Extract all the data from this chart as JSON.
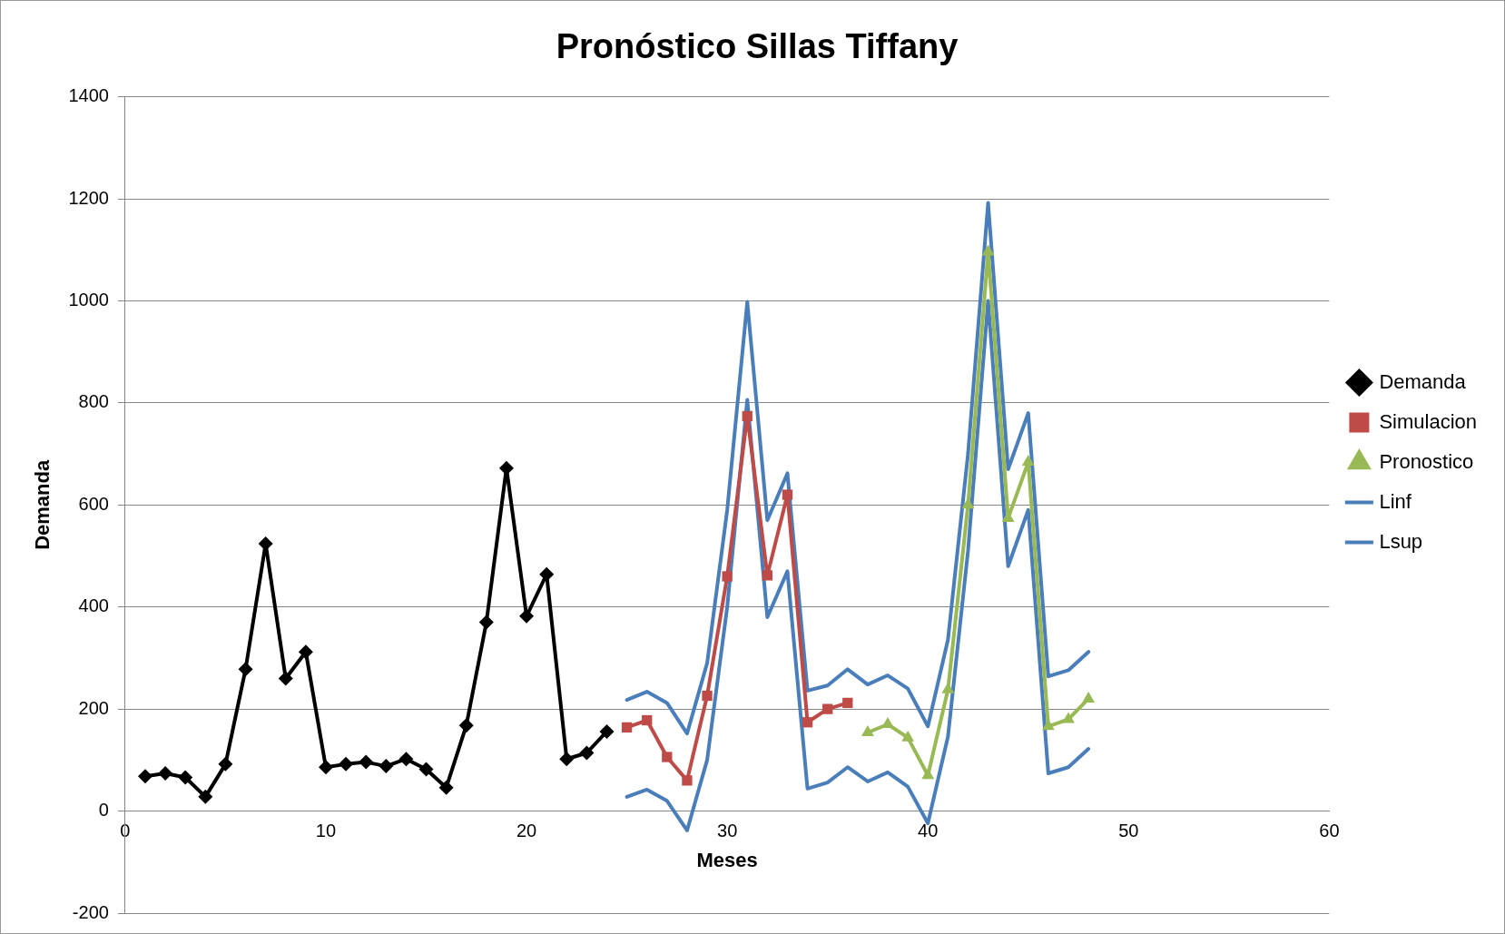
{
  "chart_data": {
    "type": "line",
    "title": "Pronóstico Sillas Tiffany",
    "xlabel": "Meses",
    "ylabel": "Demanda",
    "xlim": [
      0,
      60
    ],
    "xticks": [
      0,
      10,
      20,
      30,
      40,
      50,
      60
    ],
    "ylim": [
      -200,
      1400
    ],
    "yticks": [
      -200,
      0,
      200,
      400,
      600,
      800,
      1000,
      1200,
      1400
    ],
    "grid": "y",
    "legend": "right",
    "line_style": "solid",
    "series": [
      {
        "name": "Demanda",
        "color": "#000000",
        "marker": "diamond",
        "x": [
          1,
          2,
          3,
          4,
          5,
          6,
          7,
          8,
          9,
          10,
          11,
          12,
          13,
          14,
          15,
          16,
          17,
          18,
          19,
          20,
          21,
          22,
          23,
          24
        ],
        "values": [
          68,
          74,
          66,
          28,
          92,
          278,
          524,
          260,
          312,
          86,
          92,
          96,
          88,
          102,
          82,
          46,
          168,
          370,
          672,
          382,
          464,
          102,
          114,
          156
        ]
      },
      {
        "name": "Simulacion",
        "color": "#be4b48",
        "marker": "square",
        "x": [
          25,
          26,
          27,
          28,
          29,
          30,
          31,
          32,
          33,
          34,
          35,
          36
        ],
        "values": [
          164,
          178,
          106,
          60,
          226,
          460,
          774,
          462,
          620,
          174,
          200,
          212
        ]
      },
      {
        "name": "Pronostico",
        "color": "#98b954",
        "marker": "triangle",
        "x": [
          37,
          38,
          39,
          40,
          41,
          42,
          43,
          44,
          45,
          46,
          47,
          48
        ],
        "values": [
          154,
          170,
          144,
          70,
          238,
          600,
          1096,
          574,
          684,
          166,
          180,
          220
        ]
      },
      {
        "name": "Linf",
        "color": "#4a7ebb",
        "marker": "none",
        "x": [
          25,
          26,
          27,
          28,
          29,
          30,
          31,
          32,
          33,
          34,
          35,
          36,
          37,
          38,
          39,
          40,
          41,
          42,
          43,
          44,
          45,
          46,
          47,
          48
        ],
        "values": [
          28,
          42,
          20,
          -38,
          100,
          400,
          806,
          380,
          470,
          44,
          56,
          86,
          58,
          76,
          48,
          -24,
          146,
          510,
          1000,
          480,
          590,
          74,
          86,
          122
        ]
      },
      {
        "name": "Lsup",
        "color": "#4a7ebb",
        "marker": "none",
        "x": [
          25,
          26,
          27,
          28,
          29,
          30,
          31,
          32,
          33,
          34,
          35,
          36,
          37,
          38,
          39,
          40,
          41,
          42,
          43,
          44,
          45,
          46,
          47,
          48
        ],
        "values": [
          218,
          234,
          212,
          152,
          290,
          590,
          998,
          570,
          662,
          236,
          246,
          278,
          248,
          266,
          240,
          166,
          336,
          700,
          1192,
          670,
          780,
          264,
          276,
          312
        ]
      }
    ]
  }
}
